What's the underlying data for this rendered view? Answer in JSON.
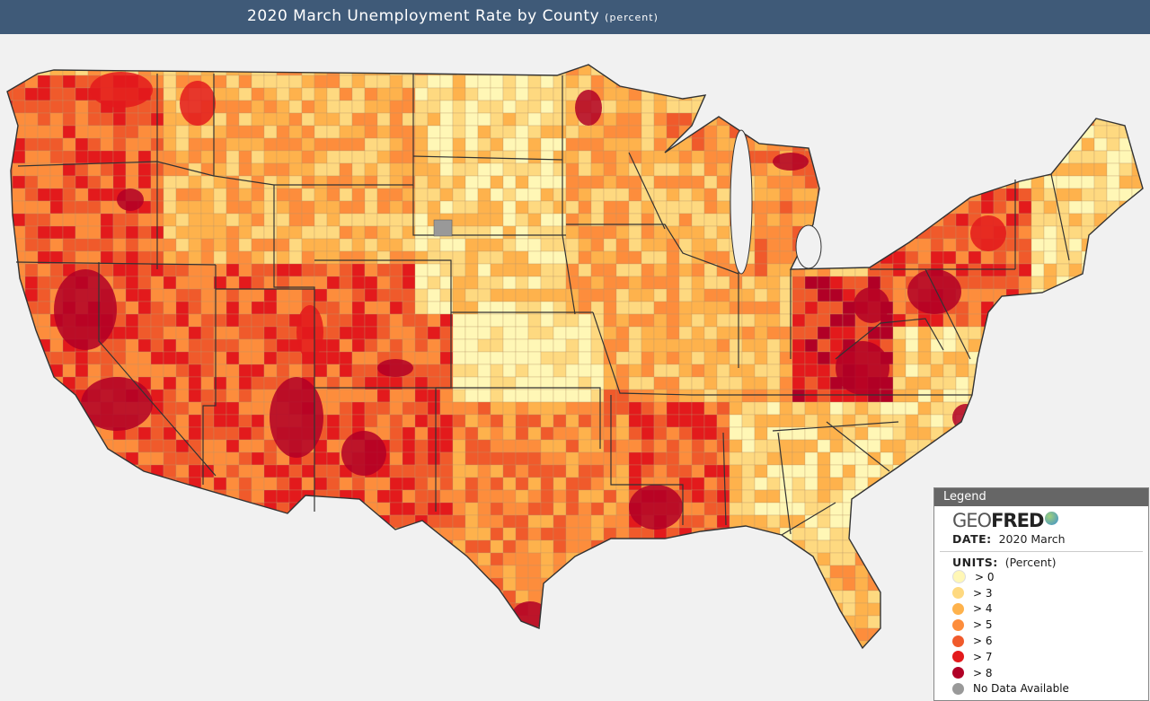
{
  "header": {
    "title": "2020 March Unemployment Rate by County",
    "unit": "(percent)"
  },
  "legend": {
    "heading": "Legend",
    "logo_part1": "GEO",
    "logo_part2": "FRED",
    "date_label": "DATE:",
    "date_value": "2020 March",
    "units_label": "UNITS:",
    "units_value": "(Percent)",
    "items": [
      {
        "label": "> 0",
        "color": "#fff7b6"
      },
      {
        "label": "> 3",
        "color": "#fed980"
      },
      {
        "label": "> 4",
        "color": "#feb24c"
      },
      {
        "label": "> 5",
        "color": "#fd8d3c"
      },
      {
        "label": "> 6",
        "color": "#f05a2b"
      },
      {
        "label": "> 7",
        "color": "#e31a1c"
      },
      {
        "label": "> 8",
        "color": "#b10026"
      },
      {
        "label": "No Data Available",
        "color": "#999999"
      }
    ]
  },
  "map": {
    "background_color": "#f1f1f1",
    "border_color": "#333333"
  }
}
